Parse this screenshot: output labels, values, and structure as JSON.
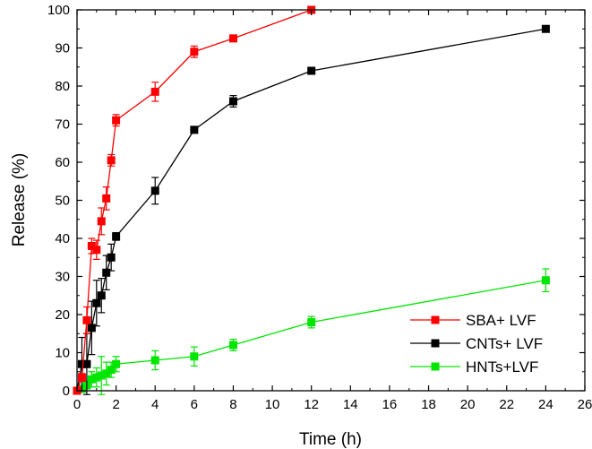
{
  "chart_data": {
    "type": "line",
    "title": "",
    "xlabel": "Time (h)",
    "ylabel": "Release (%)",
    "xlim": [
      0,
      26
    ],
    "ylim": [
      0,
      100
    ],
    "xticks": [
      0,
      2,
      4,
      6,
      8,
      10,
      12,
      14,
      16,
      18,
      20,
      22,
      24,
      26
    ],
    "yticks": [
      0,
      10,
      20,
      30,
      40,
      50,
      60,
      70,
      80,
      90,
      100
    ],
    "grid": false,
    "legend_position": "bottom-right",
    "series": [
      {
        "name": "SBA+ LVF",
        "color": "#ff0000",
        "marker": "square",
        "x": [
          0,
          0.25,
          0.5,
          0.75,
          1,
          1.25,
          1.5,
          1.75,
          2,
          4,
          6,
          8,
          12
        ],
        "y": [
          0,
          3.5,
          18.5,
          38,
          37,
          44.5,
          50.5,
          60.5,
          71,
          78.5,
          89,
          92.5,
          100
        ],
        "err": [
          0,
          1,
          3.5,
          2,
          2.5,
          3.5,
          3,
          1.5,
          1.5,
          2.5,
          1.5,
          0.5,
          0.5
        ]
      },
      {
        "name": "CNTs+ LVF",
        "color": "#000000",
        "marker": "square",
        "x": [
          0,
          0.25,
          0.5,
          0.75,
          1,
          1.25,
          1.5,
          1.75,
          2,
          4,
          6,
          8,
          12,
          24
        ],
        "y": [
          0,
          7,
          7,
          16.5,
          23,
          25,
          31,
          35,
          40.5,
          52.5,
          68.5,
          76,
          84,
          95
        ],
        "err": [
          0,
          7,
          8,
          7,
          6,
          4.5,
          4.5,
          3.5,
          1,
          3.5,
          0.5,
          1.5,
          0.5,
          0.5
        ]
      },
      {
        "name": "HNTs+LVF",
        "color": "#00e600",
        "marker": "square",
        "x": [
          0,
          0.25,
          0.5,
          0.75,
          1,
          1.25,
          1.5,
          1.75,
          2,
          4,
          6,
          8,
          12,
          24
        ],
        "y": [
          0,
          0.5,
          1.5,
          3,
          3.5,
          4,
          4.5,
          5.5,
          7,
          8,
          9,
          12,
          18,
          29
        ],
        "err": [
          0,
          0.5,
          1,
          2,
          2.5,
          5,
          3,
          2,
          2,
          2.5,
          2.5,
          1.5,
          1.5,
          3
        ]
      }
    ]
  }
}
